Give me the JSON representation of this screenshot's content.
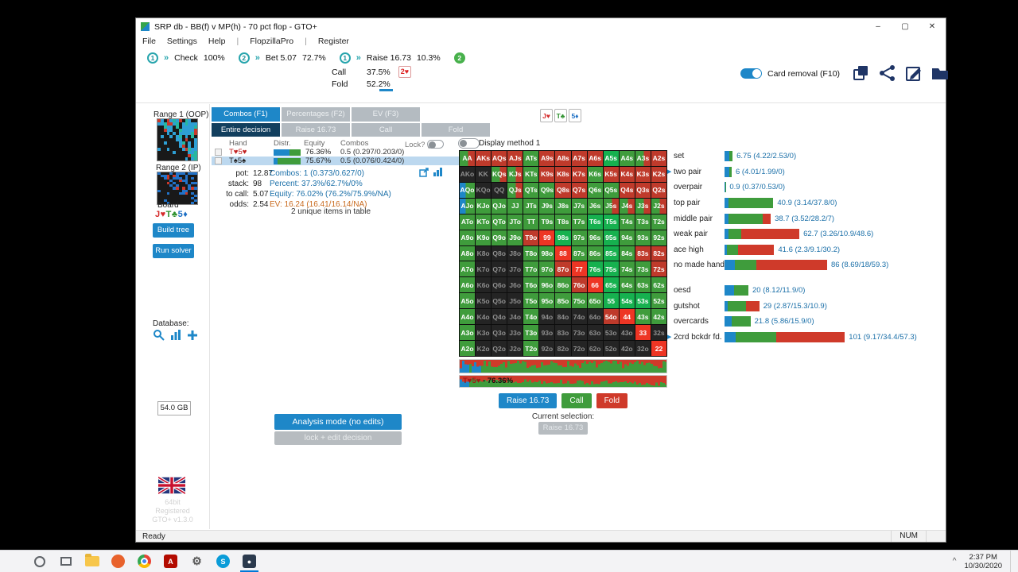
{
  "titlebar": {
    "title": "SRP db - BB(f) v MP(h) - 70 pct flop - GTO+",
    "min": "–",
    "max": "▢",
    "close": "✕"
  },
  "menu": {
    "items": [
      "File",
      "Settings",
      "Help",
      "|",
      "FlopzillaPro",
      "|",
      "Register"
    ]
  },
  "tree": {
    "n1": "1",
    "check_label": "Check",
    "check_pct": "100%",
    "n2": "2",
    "bet_label": "Bet 5.07",
    "bet_pct": "72.7%",
    "n3": "1",
    "raise_label": "Raise 16.73",
    "raise_pct": "10.3%",
    "n4": "2",
    "call_label": "Call",
    "call_pct": "37.5%",
    "fold_label": "Fold",
    "fold_pct": "52.2%",
    "badge": "2♥"
  },
  "toolbar": {
    "card_removal_label": "Card removal (F10)"
  },
  "sidebar": {
    "range1_label": "Range 1 (OOP)",
    "range2_label": "Range 2 (IP)",
    "board_label": "Board",
    "board": [
      {
        "label": "J♥",
        "color": "#d42b2b"
      },
      {
        "label": "T♣",
        "color": "#2a8f2a"
      },
      {
        "label": "5♦",
        "color": "#1d6fc4"
      }
    ],
    "build_tree": "Build tree",
    "run_solver": "Run solver",
    "database_label": "Database:",
    "disk_size": "54.0 GB",
    "version": [
      "64bit",
      "Registered",
      "GTO+ v1.3.0"
    ]
  },
  "tabs": {
    "row1": [
      {
        "label": "Combos (F1)",
        "active": true
      },
      {
        "label": "Percentages (F2)"
      },
      {
        "label": "EV (F3)"
      }
    ],
    "row2": [
      {
        "label": "Entire decision",
        "dark": true
      },
      {
        "label": "Raise 16.73"
      },
      {
        "label": "Call"
      },
      {
        "label": "Fold"
      }
    ]
  },
  "table": {
    "headers": {
      "hand": "Hand",
      "distr": "Distr.",
      "equity": "Equity",
      "combos": "Combos",
      "lock": "Lock? (F9)"
    },
    "rows": [
      {
        "hand": "T♥5♥",
        "hand_color": "#c22222",
        "equity": "76.36%",
        "combos": "0.5 (0.297/0.203/0)",
        "raise": 0.297,
        "call": 0.203,
        "selected": false
      },
      {
        "hand": "T♠5♠",
        "hand_color": "#222222",
        "equity": "75.67%",
        "combos": "0.5 (0.076/0.424/0)",
        "raise": 0.076,
        "call": 0.424,
        "selected": true
      }
    ]
  },
  "stats": {
    "pot_label": "pot:",
    "pot": "12.87",
    "stack_label": "stack:",
    "stack": "98",
    "tocall_label": "to call:",
    "tocall": "5.07",
    "odds_label": "odds:",
    "odds": "2.54",
    "combos": "Combos: 1 (0.373/0.627/0)",
    "percent": "Percent: 37.3%/62.7%/0%",
    "equity": "Equity: 76.02% (76.2%/75.9%/NA)",
    "ev": "EV: 16.24 (16.41/16.14/NA)",
    "unique": "2 unique items in table"
  },
  "display_method": {
    "label": "Display method 1"
  },
  "matrix": {
    "labels": [
      [
        "AA",
        "AKs",
        "AQs",
        "AJs",
        "ATs",
        "A9s",
        "A8s",
        "A7s",
        "A6s",
        "A5s",
        "A4s",
        "A3s",
        "A2s"
      ],
      [
        "AKo",
        "KK",
        "KQs",
        "KJs",
        "KTs",
        "K9s",
        "K8s",
        "K7s",
        "K6s",
        "K5s",
        "K4s",
        "K3s",
        "K2s"
      ],
      [
        "AQo",
        "KQo",
        "QQ",
        "QJs",
        "QTs",
        "Q9s",
        "Q8s",
        "Q7s",
        "Q6s",
        "Q5s",
        "Q4s",
        "Q3s",
        "Q2s"
      ],
      [
        "AJo",
        "KJo",
        "QJo",
        "JJ",
        "JTs",
        "J9s",
        "J8s",
        "J7s",
        "J6s",
        "J5s",
        "J4s",
        "J3s",
        "J2s"
      ],
      [
        "ATo",
        "KTo",
        "QTo",
        "JTo",
        "TT",
        "T9s",
        "T8s",
        "T7s",
        "T6s",
        "T5s",
        "T4s",
        "T3s",
        "T2s"
      ],
      [
        "A9o",
        "K9o",
        "Q9o",
        "J9o",
        "T9o",
        "99",
        "98s",
        "97s",
        "96s",
        "95s",
        "94s",
        "93s",
        "92s"
      ],
      [
        "A8o",
        "K8o",
        "Q8o",
        "J8o",
        "T8o",
        "98o",
        "88",
        "87s",
        "86s",
        "85s",
        "84s",
        "83s",
        "82s"
      ],
      [
        "A7o",
        "K7o",
        "Q7o",
        "J7o",
        "T7o",
        "97o",
        "87o",
        "77",
        "76s",
        "75s",
        "74s",
        "73s",
        "72s"
      ],
      [
        "A6o",
        "K6o",
        "Q6o",
        "J6o",
        "T6o",
        "96o",
        "86o",
        "76o",
        "66",
        "65s",
        "64s",
        "63s",
        "62s"
      ],
      [
        "A5o",
        "K5o",
        "Q5o",
        "J5o",
        "T5o",
        "95o",
        "85o",
        "75o",
        "65o",
        "55",
        "54s",
        "53s",
        "52s"
      ],
      [
        "A4o",
        "K4o",
        "Q4o",
        "J4o",
        "T4o",
        "94o",
        "84o",
        "74o",
        "64o",
        "54o",
        "44",
        "43s",
        "42s"
      ],
      [
        "A3o",
        "K3o",
        "Q3o",
        "J3o",
        "T3o",
        "93o",
        "83o",
        "73o",
        "63o",
        "53o",
        "43o",
        "33",
        "32s"
      ],
      [
        "A2o",
        "K2o",
        "Q2o",
        "J2o",
        "T2o",
        "92o",
        "82o",
        "72o",
        "62o",
        "52o",
        "42o",
        "32o",
        "22"
      ]
    ],
    "colors": [
      "mrrrgrrrrGgmr",
      "xxmmgrrrgrrrr",
      "bxxmggrrggrrr",
      "bggggggggmmmm",
      "ggggggggGGggg",
      "ggggrRGggGggg",
      "gxxxggRggGgrr",
      "gxxxggrRGGggr",
      "gxxxgggrRGggg",
      "gxxxgggggGGGg",
      "gxxxgxxxxrRgg",
      "gxxxgxxxxxxRx",
      "gxxxgxxxxxxxR"
    ]
  },
  "categories": {
    "scale": 1.5,
    "items": [
      {
        "name": "set",
        "raise": 4.22,
        "call": 2.53,
        "fold": 0,
        "text": "6.75 (4.22/2.53/0)"
      },
      {
        "name": "two pair",
        "arrow": true,
        "raise": 4.01,
        "call": 1.99,
        "fold": 0,
        "text": "6 (4.01/1.99/0)"
      },
      {
        "name": "overpair",
        "raise": 0.37,
        "call": 0.53,
        "fold": 0,
        "text": "0.9 (0.37/0.53/0)"
      },
      {
        "name": "top pair",
        "raise": 3.14,
        "call": 37.8,
        "fold": 0,
        "text": "40.9 (3.14/37.8/0)"
      },
      {
        "name": "middle pair",
        "raise": 3.52,
        "call": 28.2,
        "fold": 7,
        "text": "38.7 (3.52/28.2/7)"
      },
      {
        "name": "weak pair",
        "raise": 3.26,
        "call": 10.9,
        "fold": 48.6,
        "text": "62.7 (3.26/10.9/48.6)"
      },
      {
        "name": "ace high",
        "raise": 2.3,
        "call": 9.1,
        "fold": 30.2,
        "text": "41.6 (2.3/9.1/30.2)"
      },
      {
        "name": "no made hand",
        "raise": 8.69,
        "call": 18,
        "fold": 59.3,
        "text": "86 (8.69/18/59.3)"
      },
      {
        "name": "oesd",
        "gap_before": true,
        "raise": 8.12,
        "call": 11.9,
        "fold": 0,
        "text": "20 (8.12/11.9/0)"
      },
      {
        "name": "gutshot",
        "raise": 2.87,
        "call": 15.3,
        "fold": 10.9,
        "text": "29 (2.87/15.3/10.9)"
      },
      {
        "name": "overcards",
        "raise": 5.86,
        "call": 15.9,
        "fold": 0,
        "text": "21.8 (5.86/15.9/0)"
      },
      {
        "name": "2crd bckdr fd.",
        "arrow": true,
        "raise": 9.17,
        "call": 34.4,
        "fold": 57.3,
        "text": "101 (9.17/34.4/57.3)"
      }
    ]
  },
  "strips": {
    "label_hand": "T♥5♥",
    "label_rest": " - 76.36%"
  },
  "actions": {
    "raise": "Raise 16.73",
    "call": "Call",
    "fold": "Fold",
    "current_label": "Current selection:",
    "current": "Raise 16.73"
  },
  "mode": {
    "analysis": "Analysis mode (no edits)",
    "lock": "lock + edit decision"
  },
  "statusbar": {
    "left": "Ready",
    "right": "NUM"
  },
  "taskbar": {
    "time": "2:37 PM",
    "date": "10/30/2020",
    "items": [
      {
        "name": "start-button",
        "icon": "start"
      },
      {
        "name": "search-button",
        "icon": "ring"
      },
      {
        "name": "task-view-button",
        "icon": "taskview"
      },
      {
        "name": "file-explorer-button",
        "icon": "folder"
      },
      {
        "name": "firefox-button",
        "icon": "circle",
        "color": "#e8622c"
      },
      {
        "name": "chrome-button",
        "icon": "chrome"
      },
      {
        "name": "acrobat-button",
        "icon": "square",
        "color": "#b30b00",
        "glyph": "A"
      },
      {
        "name": "tools-button",
        "icon": "glyph",
        "color": "#555555",
        "glyph": "⚙"
      },
      {
        "name": "skype-button",
        "icon": "circle",
        "color": "#0a9cd8",
        "glyph": "S"
      },
      {
        "name": "obs-button",
        "icon": "square",
        "color": "#2b3a4d",
        "glyph": "●",
        "active": true
      }
    ]
  }
}
